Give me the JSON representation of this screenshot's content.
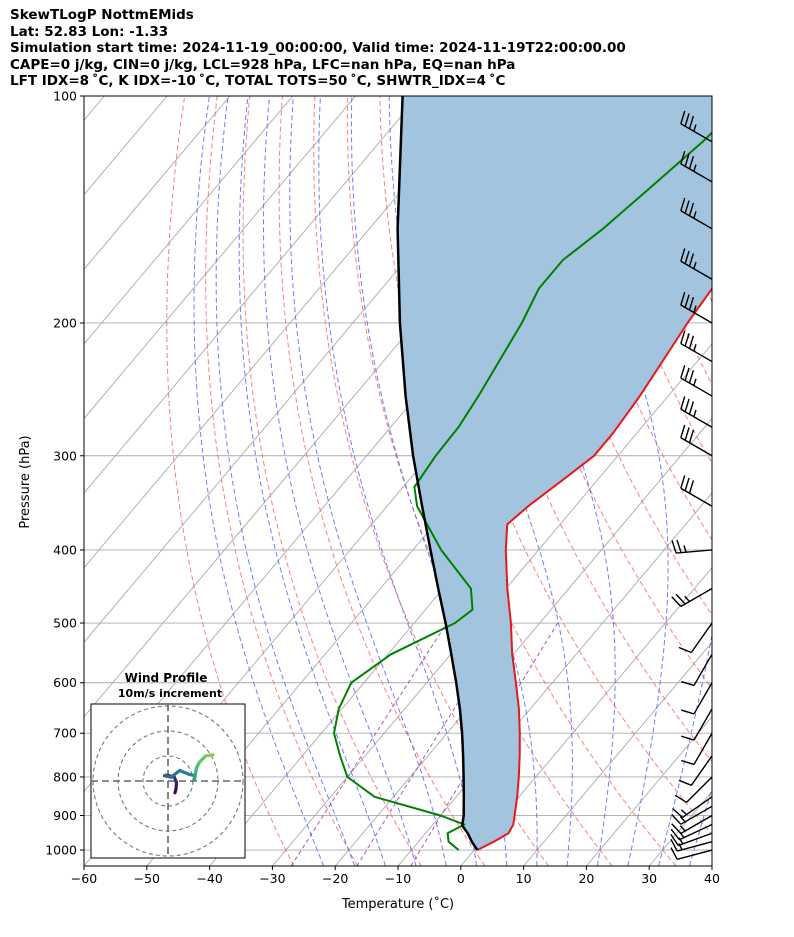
{
  "header": {
    "title": "SkewTLogP NottmEMids",
    "location": "Lat: 52.83   Lon: -1.33",
    "times": "Simulation start time: 2024-11-19_00:00:00, Valid time: 2024-11-19T22:00:00.00",
    "cape_line": "CAPE=0 j/kg, CIN=0 j/kg, LCL=928 hPa, LFC=nan hPa, EQ=nan hPa",
    "index_line": "LFT IDX=8 ˚C, K IDX=-10 ˚C, TOTAL TOTS=50 ˚C, SHWTR_IDX=4 ˚C"
  },
  "chart_data": {
    "type": "line",
    "subtype": "skew-T log-P diagram",
    "xlabel": "Temperature (˚C)",
    "ylabel": "Pressure (hPa)",
    "xlim": [
      -60,
      40
    ],
    "ylim": [
      1050,
      100
    ],
    "y_scale": "log",
    "x_ticks": [
      "−60",
      "−50",
      "−40",
      "−30",
      "−20",
      "−10",
      "0",
      "10",
      "20",
      "30",
      "40"
    ],
    "y_ticks": [
      "100",
      "200",
      "300",
      "400",
      "500",
      "600",
      "700",
      "800",
      "900",
      "1000"
    ],
    "grid": true,
    "colors": {
      "temperature": "#e31a1c",
      "dewpoint": "#008000",
      "parcel": "#000000",
      "cape_fill": "#a3c4de",
      "dry_adiabats": "#ff6666",
      "moist_adiabats": "#5566ff",
      "mixing_ratio": "#9a2aa8",
      "isotherms": "#aaaaaa"
    },
    "series": [
      {
        "role": "temperature",
        "points": [
          [
            1000,
            0.5
          ],
          [
            975,
            2
          ],
          [
            950,
            3.2
          ],
          [
            925,
            2.8
          ],
          [
            900,
            1.8
          ],
          [
            850,
            -0.3
          ],
          [
            800,
            -2.7
          ],
          [
            750,
            -5.4
          ],
          [
            700,
            -8.4
          ],
          [
            650,
            -11.8
          ],
          [
            600,
            -15.8
          ],
          [
            550,
            -20.2
          ],
          [
            500,
            -24.6
          ],
          [
            450,
            -29.8
          ],
          [
            400,
            -35.2
          ],
          [
            370,
            -38.4
          ],
          [
            350,
            -37.5
          ],
          [
            320,
            -35.3
          ],
          [
            300,
            -33.8
          ],
          [
            280,
            -33.8
          ],
          [
            250,
            -34.5
          ],
          [
            200,
            -36.7
          ],
          [
            180,
            -37.4
          ],
          [
            150,
            -37.8
          ],
          [
            130,
            -37.9
          ],
          [
            115,
            -39.2
          ],
          [
            100,
            -41.5
          ]
        ]
      },
      {
        "role": "dewpoint",
        "points": [
          [
            1000,
            -2.5
          ],
          [
            975,
            -5.2
          ],
          [
            950,
            -6.5
          ],
          [
            925,
            -5
          ],
          [
            900,
            -10
          ],
          [
            850,
            -23
          ],
          [
            800,
            -30
          ],
          [
            750,
            -34
          ],
          [
            700,
            -38
          ],
          [
            650,
            -40.5
          ],
          [
            600,
            -42
          ],
          [
            550,
            -39.5
          ],
          [
            500,
            -33.5
          ],
          [
            480,
            -32.5
          ],
          [
            450,
            -35.6
          ],
          [
            400,
            -45.5
          ],
          [
            350,
            -55.2
          ],
          [
            330,
            -58.2
          ],
          [
            300,
            -59
          ],
          [
            275,
            -59.2
          ],
          [
            250,
            -60.2
          ],
          [
            200,
            -63.1
          ],
          [
            180,
            -65
          ],
          [
            165,
            -65
          ],
          [
            150,
            -62.8
          ],
          [
            130,
            -60.5
          ],
          [
            115,
            -58.6
          ],
          [
            100,
            -57.2
          ]
        ]
      },
      {
        "role": "parcel",
        "points": [
          [
            1000,
            0.5
          ],
          [
            975,
            -1.5
          ],
          [
            950,
            -3.3
          ],
          [
            928,
            -5.2
          ],
          [
            900,
            -6.3
          ],
          [
            850,
            -8.8
          ],
          [
            800,
            -11.5
          ],
          [
            750,
            -14.4
          ],
          [
            700,
            -17.6
          ],
          [
            650,
            -21.2
          ],
          [
            600,
            -25.3
          ],
          [
            550,
            -29.9
          ],
          [
            500,
            -35
          ],
          [
            450,
            -40.8
          ],
          [
            400,
            -47.2
          ],
          [
            350,
            -54.4
          ],
          [
            300,
            -62.6
          ],
          [
            250,
            -71.8
          ],
          [
            200,
            -82.5
          ],
          [
            150,
            -95.5
          ],
          [
            100,
            -112.5
          ]
        ]
      }
    ],
    "wind_barbs": [
      {
        "p": 1000,
        "speed": 10,
        "dir": 255
      },
      {
        "p": 975,
        "speed": 15,
        "dir": 255
      },
      {
        "p": 950,
        "speed": 15,
        "dir": 250
      },
      {
        "p": 925,
        "speed": 15,
        "dir": 245
      },
      {
        "p": 900,
        "speed": 15,
        "dir": 240
      },
      {
        "p": 875,
        "speed": 15,
        "dir": 240
      },
      {
        "p": 850,
        "speed": 15,
        "dir": 235
      },
      {
        "p": 800,
        "speed": 10,
        "dir": 225
      },
      {
        "p": 750,
        "speed": 10,
        "dir": 215
      },
      {
        "p": 700,
        "speed": 10,
        "dir": 210
      },
      {
        "p": 650,
        "speed": 10,
        "dir": 210
      },
      {
        "p": 600,
        "speed": 10,
        "dir": 210
      },
      {
        "p": 550,
        "speed": 10,
        "dir": 210
      },
      {
        "p": 500,
        "speed": 10,
        "dir": 215
      },
      {
        "p": 450,
        "speed": 25,
        "dir": 240
      },
      {
        "p": 400,
        "speed": 25,
        "dir": 265
      },
      {
        "p": 350,
        "speed": 30,
        "dir": 300
      },
      {
        "p": 300,
        "speed": 30,
        "dir": 300
      },
      {
        "p": 275,
        "speed": 35,
        "dir": 300
      },
      {
        "p": 250,
        "speed": 35,
        "dir": 300
      },
      {
        "p": 225,
        "speed": 35,
        "dir": 300
      },
      {
        "p": 200,
        "speed": 35,
        "dir": 300
      },
      {
        "p": 175,
        "speed": 35,
        "dir": 300
      },
      {
        "p": 150,
        "speed": 35,
        "dir": 300
      },
      {
        "p": 130,
        "speed": 35,
        "dir": 300
      },
      {
        "p": 115,
        "speed": 35,
        "dir": 300
      }
    ],
    "hodograph": {
      "title": "Wind Profile",
      "subtitle": "10m/s increment",
      "rings": [
        10,
        20,
        30
      ],
      "colormap": [
        "#440154",
        "#3b528b",
        "#21918c",
        "#5ec962",
        "#fde725"
      ],
      "path": [
        [
          2.8,
          4.7
        ],
        [
          3.2,
          3.2
        ],
        [
          3.4,
          0.6
        ],
        [
          2.5,
          -1.6
        ],
        [
          0.3,
          -2.2
        ],
        [
          -0.8,
          -2.3
        ],
        [
          -1.4,
          -2.1
        ],
        [
          1.2,
          -1.5
        ],
        [
          4.7,
          -4.2
        ],
        [
          8.3,
          -2.7
        ],
        [
          10.6,
          -2.2
        ],
        [
          10.6,
          -0.6
        ],
        [
          11.1,
          -3.6
        ],
        [
          11.4,
          -5.2
        ],
        [
          12.5,
          -7.4
        ],
        [
          15,
          -10
        ],
        [
          18,
          -10.5
        ]
      ]
    }
  }
}
